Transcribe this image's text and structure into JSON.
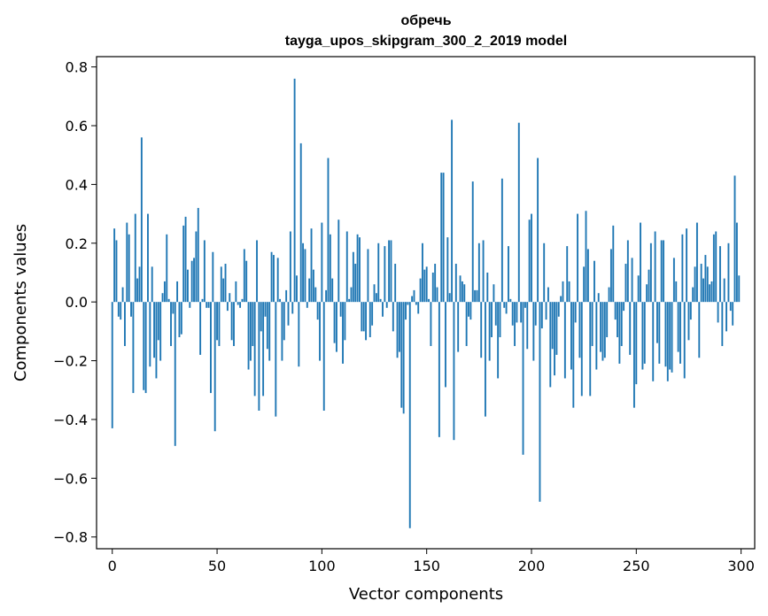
{
  "chart_data": {
    "type": "bar",
    "title": [
      "обречь",
      "tayga_upos_skipgram_300_2_2019 model"
    ],
    "xlabel": "Vector components",
    "ylabel": "Components values",
    "xlim": [
      -7.5,
      306.5
    ],
    "ylim": [
      -0.84,
      0.835
    ],
    "xticks": [
      0,
      50,
      100,
      150,
      200,
      250,
      300
    ],
    "yticks": [
      -0.8,
      -0.6,
      -0.4,
      -0.2,
      0.0,
      0.2,
      0.4,
      0.6,
      0.8
    ],
    "ytick_labels": [
      "−0.8",
      "−0.6",
      "−0.4",
      "−0.2",
      "0.0",
      "0.2",
      "0.4",
      "0.6",
      "0.8"
    ],
    "bar_color": "#1f77b4",
    "grid": false,
    "x": "0..299",
    "values": [
      -0.43,
      0.25,
      0.21,
      -0.05,
      -0.06,
      0.05,
      -0.15,
      0.27,
      0.23,
      -0.05,
      -0.31,
      0.3,
      0.08,
      0.12,
      0.56,
      -0.3,
      -0.31,
      0.3,
      -0.22,
      0.12,
      -0.19,
      -0.26,
      -0.13,
      -0.2,
      0.03,
      0.07,
      0.23,
      0.01,
      -0.15,
      -0.04,
      -0.49,
      0.07,
      -0.12,
      -0.11,
      0.26,
      0.29,
      0.11,
      -0.02,
      0.14,
      0.15,
      0.24,
      0.32,
      -0.18,
      0.01,
      0.21,
      -0.02,
      -0.02,
      -0.31,
      0.17,
      -0.44,
      -0.13,
      -0.15,
      0.12,
      0.08,
      0.13,
      -0.03,
      0.03,
      -0.13,
      -0.15,
      0.07,
      -0.01,
      -0.02,
      0.01,
      0.18,
      0.14,
      -0.23,
      -0.2,
      -0.15,
      -0.32,
      0.21,
      -0.37,
      -0.1,
      -0.32,
      -0.05,
      -0.16,
      -0.2,
      0.17,
      0.16,
      -0.39,
      0.15,
      0.01,
      -0.2,
      -0.13,
      0.04,
      -0.08,
      0.24,
      -0.04,
      0.76,
      0.09,
      -0.22,
      0.54,
      0.2,
      0.18,
      -0.02,
      0.08,
      0.25,
      0.11,
      0.05,
      -0.06,
      -0.2,
      0.27,
      -0.37,
      0.04,
      0.49,
      0.23,
      0.08,
      -0.14,
      -0.17,
      0.28,
      -0.05,
      -0.21,
      -0.13,
      0.24,
      0.01,
      0.05,
      0.17,
      0.13,
      0.23,
      0.22,
      -0.1,
      -0.1,
      -0.13,
      0.18,
      -0.12,
      -0.08,
      0.06,
      0.03,
      0.2,
      0.01,
      -0.05,
      0.19,
      -0.02,
      0.21,
      0.21,
      -0.1,
      0.13,
      -0.19,
      -0.17,
      -0.36,
      -0.38,
      -0.06,
      -0.01,
      -0.77,
      0.02,
      0.04,
      -0.01,
      -0.04,
      0.08,
      0.2,
      0.11,
      0.12,
      0.01,
      -0.15,
      0.1,
      0.13,
      0.05,
      -0.46,
      0.44,
      0.44,
      -0.29,
      0.22,
      0.03,
      0.62,
      -0.47,
      0.13,
      -0.17,
      0.09,
      0.07,
      0.06,
      -0.15,
      -0.05,
      -0.06,
      0.41,
      0.04,
      0.04,
      0.2,
      -0.19,
      0.21,
      -0.39,
      0.1,
      -0.2,
      -0.12,
      0.06,
      -0.08,
      -0.26,
      -0.12,
      0.42,
      -0.02,
      -0.04,
      0.19,
      0.01,
      -0.08,
      -0.15,
      -0.07,
      0.61,
      -0.07,
      -0.52,
      -0.02,
      -0.16,
      0.28,
      0.3,
      -0.2,
      -0.08,
      0.49,
      -0.68,
      -0.09,
      0.2,
      -0.06,
      0.05,
      -0.29,
      -0.16,
      -0.25,
      -0.18,
      -0.05,
      0.02,
      0.07,
      -0.26,
      0.19,
      0.07,
      -0.23,
      -0.36,
      -0.07,
      0.3,
      -0.19,
      -0.32,
      0.12,
      0.31,
      0.18,
      -0.32,
      -0.15,
      0.14,
      -0.23,
      0.03,
      -0.17,
      -0.2,
      -0.19,
      -0.12,
      0.05,
      0.18,
      0.26,
      -0.06,
      -0.12,
      -0.21,
      -0.15,
      -0.03,
      0.13,
      0.21,
      -0.18,
      0.15,
      -0.36,
      -0.28,
      0.09,
      0.27,
      -0.23,
      -0.21,
      0.06,
      0.11,
      0.2,
      -0.27,
      0.24,
      -0.14,
      -0.21,
      0.21,
      0.21,
      -0.22,
      -0.27,
      -0.23,
      -0.24,
      0.15,
      0.07,
      -0.17,
      -0.21,
      0.23,
      -0.26,
      0.25,
      -0.13,
      -0.06,
      0.05,
      0.12,
      0.27,
      -0.19,
      0.13,
      0.08,
      0.16,
      0.12,
      0.06,
      0.07,
      0.23,
      0.24,
      -0.07,
      0.19,
      -0.15,
      0.08,
      -0.1,
      0.2,
      -0.03,
      -0.08,
      0.43,
      0.27,
      0.09
    ]
  }
}
